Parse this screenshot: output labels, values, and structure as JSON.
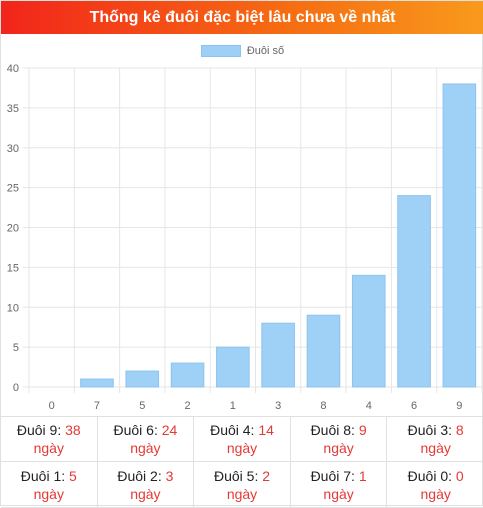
{
  "header": {
    "title": "Thống kê đuôi đặc biệt lâu chưa về nhất"
  },
  "colors": {
    "bar": "#9fd0f5",
    "bar_border": "#8cc4ef",
    "accent_red": "#e53935",
    "header_start": "#f2251b",
    "header_end": "#f89a1c"
  },
  "chart_data": {
    "type": "bar",
    "categories": [
      "0",
      "7",
      "5",
      "2",
      "1",
      "3",
      "8",
      "4",
      "6",
      "9"
    ],
    "series": [
      {
        "name": "Đuôi số",
        "values": [
          0,
          1,
          2,
          3,
          5,
          8,
          9,
          14,
          24,
          38
        ]
      }
    ],
    "ylim": [
      0,
      40
    ],
    "yticks": [
      0,
      5,
      10,
      15,
      20,
      25,
      30,
      35,
      40
    ],
    "grid": true,
    "legend": "top-center"
  },
  "stats": [
    {
      "label": "Đuôi 9:",
      "value": "38",
      "unit": "ngày"
    },
    {
      "label": "Đuôi 6:",
      "value": "24",
      "unit": "ngày"
    },
    {
      "label": "Đuôi 4:",
      "value": "14",
      "unit": "ngày"
    },
    {
      "label": "Đuôi 8:",
      "value": "9",
      "unit": "ngày"
    },
    {
      "label": "Đuôi 3:",
      "value": "8",
      "unit": "ngày"
    },
    {
      "label": "Đuôi 1:",
      "value": "5",
      "unit": "ngày"
    },
    {
      "label": "Đuôi 2:",
      "value": "3",
      "unit": "ngày"
    },
    {
      "label": "Đuôi 5:",
      "value": "2",
      "unit": "ngày"
    },
    {
      "label": "Đuôi 7:",
      "value": "1",
      "unit": "ngày"
    },
    {
      "label": "Đuôi 0:",
      "value": "0",
      "unit": "ngày"
    }
  ]
}
